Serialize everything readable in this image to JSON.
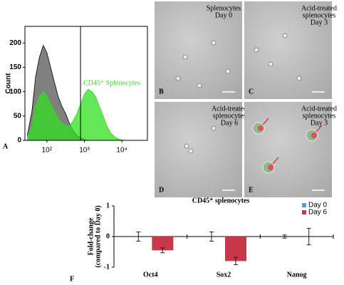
{
  "chart_data": [
    {
      "type": "histogram-overlay",
      "panel": "A",
      "y_label": "Count",
      "annotation": "CD45⁺ Splenocytes",
      "x": [
        30,
        40,
        50,
        63,
        80,
        100,
        126,
        158,
        200,
        251,
        316,
        398,
        501,
        631,
        794,
        1000,
        1259,
        1585,
        1995,
        2512,
        3162,
        3981,
        5012,
        6310,
        7943,
        10000,
        12589
      ],
      "series": [
        {
          "color": "#808080",
          "outline": "#000000",
          "values": [
            10,
            60,
            130,
            170,
            195,
            180,
            150,
            120,
            90,
            70,
            55,
            35,
            20,
            10,
            5,
            2,
            0,
            0,
            0,
            0,
            0,
            0,
            0,
            0,
            0,
            0,
            0
          ]
        },
        {
          "color": "#33dd22",
          "outline": "#33dd22",
          "values": [
            5,
            30,
            70,
            90,
            100,
            90,
            75,
            60,
            45,
            35,
            30,
            30,
            40,
            55,
            75,
            95,
            105,
            100,
            90,
            70,
            50,
            30,
            15,
            8,
            3,
            1,
            0
          ]
        }
      ],
      "marker_x": 790,
      "xlog": true,
      "xlim": [
        26,
        48000
      ],
      "xticks": [
        {
          "value": 100,
          "label": "10²"
        },
        {
          "value": 1000,
          "label": "10³"
        },
        {
          "value": 10000,
          "label": "10⁴"
        }
      ],
      "ylim": [
        0,
        234
      ],
      "yticks": [
        0,
        50,
        100,
        150,
        200
      ]
    },
    {
      "type": "bar",
      "panel": "F",
      "title": "CD45⁺ splenocytes",
      "y_label": [
        "Fold-change",
        "(compared to Day 0)"
      ],
      "categories": [
        "Oct4",
        "Sox2",
        "Nanog"
      ],
      "series": [
        {
          "name": "Day 0",
          "color": "#5b9bd5",
          "values": [
            0,
            0,
            0
          ],
          "errors": [
            0.15,
            0.15,
            0.05
          ]
        },
        {
          "name": "Day 6",
          "color": "#c8374a",
          "values": [
            -0.45,
            -0.8,
            0
          ],
          "errors": [
            0.08,
            0.12,
            0.27
          ]
        }
      ],
      "ylim": [
        -1,
        1
      ],
      "yticks": [
        -1,
        0,
        1
      ],
      "legend": "top-right"
    }
  ],
  "panels": [
    {
      "letter": "B",
      "label": [
        "Splenocytes",
        "Day 0"
      ]
    },
    {
      "letter": "C",
      "label": [
        "Acid-treated",
        "splenocytes",
        "Day 3"
      ]
    },
    {
      "letter": "D",
      "label": [
        "Acid-treated",
        "splenocytes",
        "Day 6"
      ]
    },
    {
      "letter": "E",
      "label": [
        "Acid-treated",
        "splenocytes",
        "Day 3"
      ]
    }
  ]
}
